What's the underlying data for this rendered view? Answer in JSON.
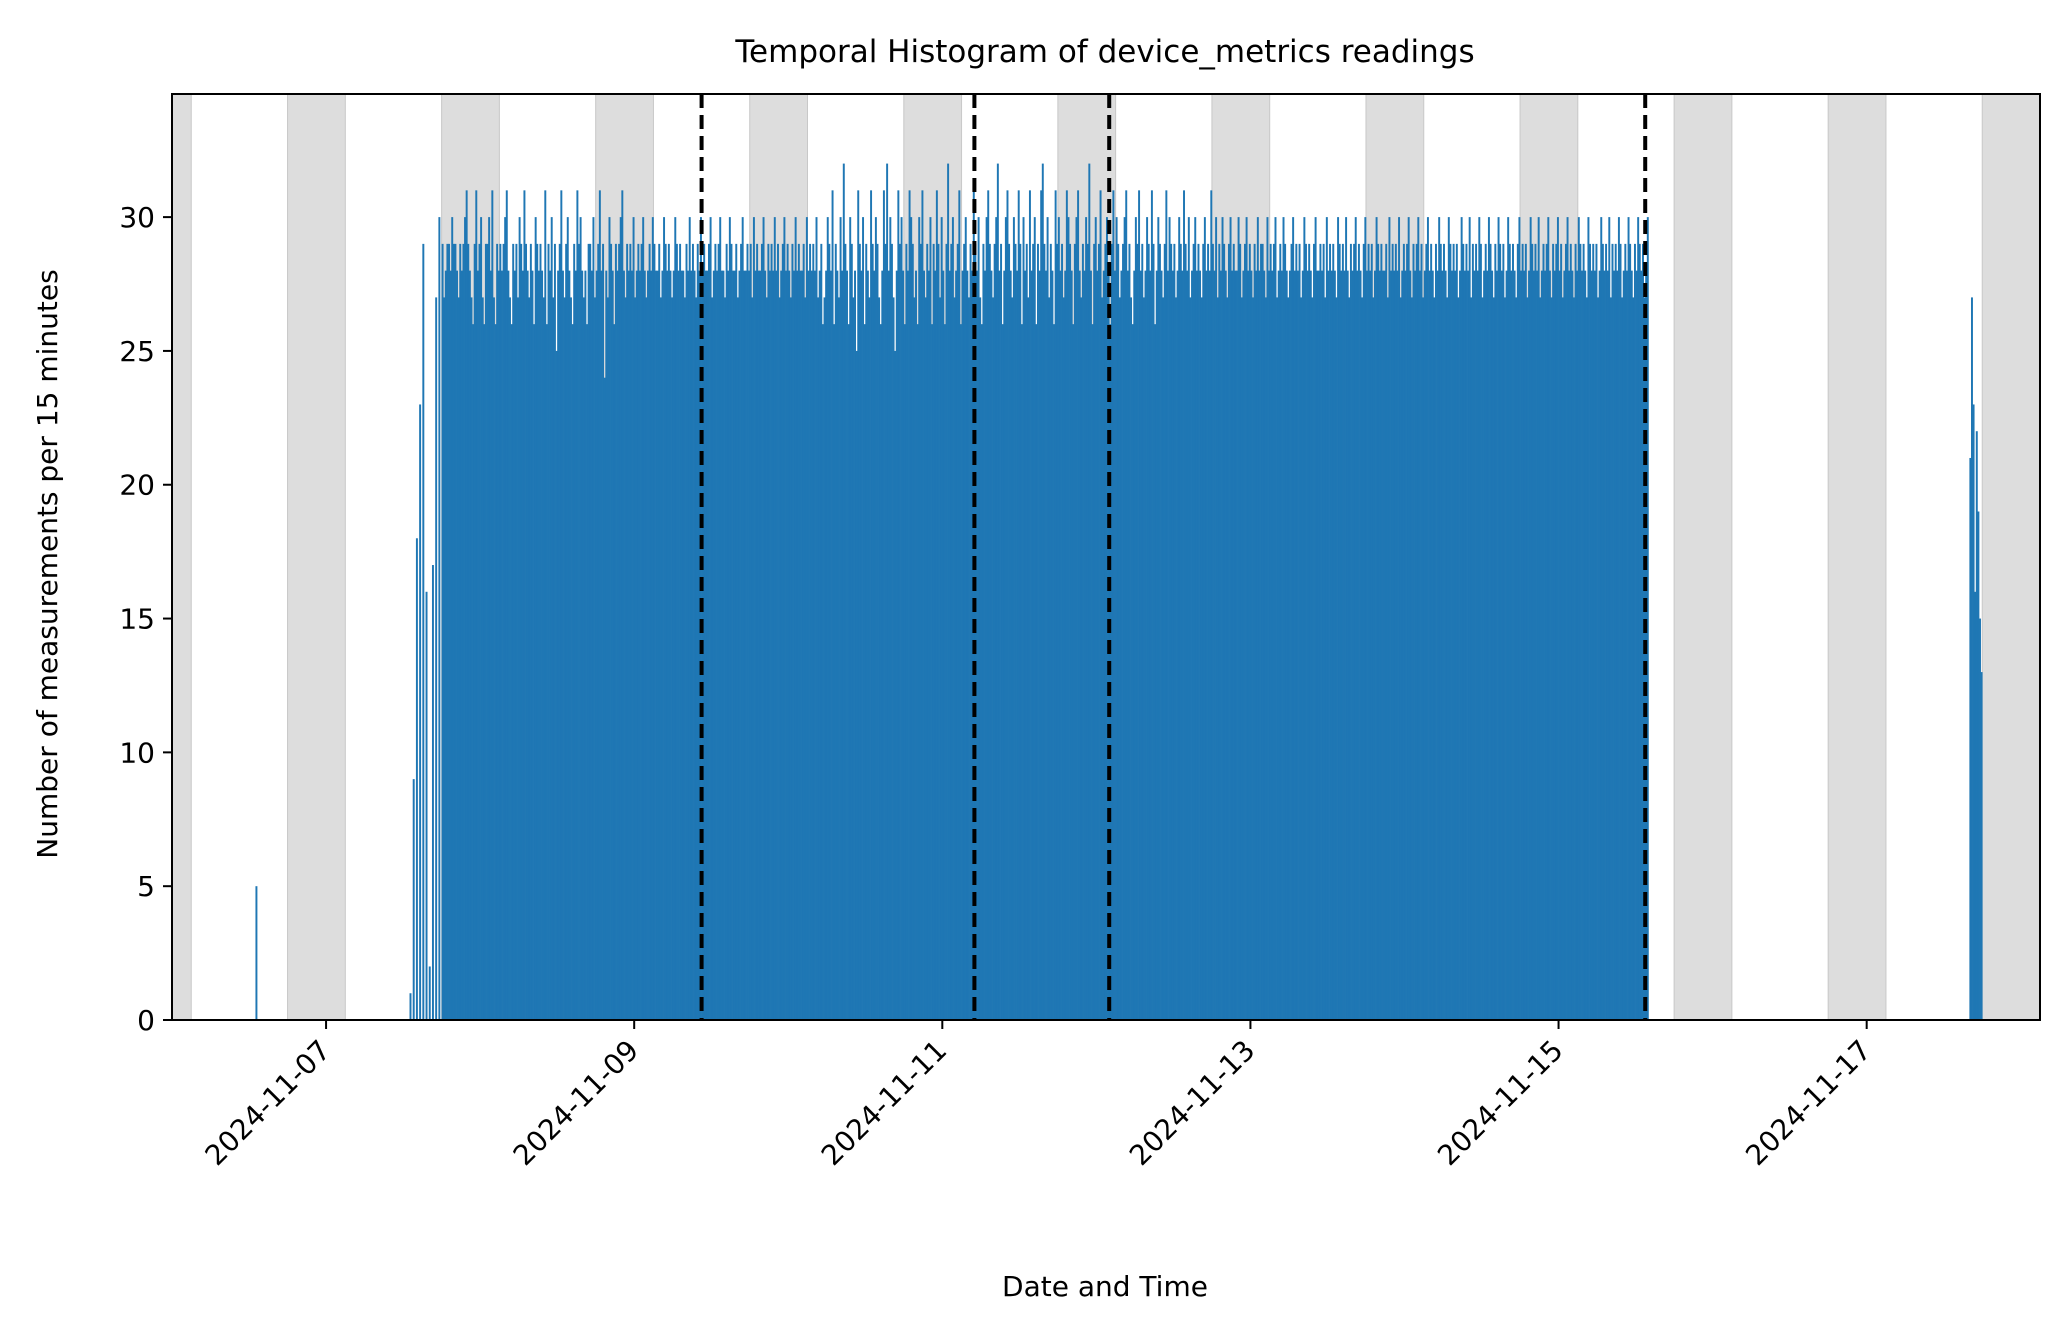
{
  "chart_data": {
    "type": "bar",
    "title": "Temporal Histogram of device_metrics readings",
    "xlabel": "Date and Time",
    "ylabel": "Number of measurements per 15 minutes",
    "xlim": [
      "2024-11-06 00:00",
      "2024-11-18 03:00"
    ],
    "ylim": [
      0,
      34.6
    ],
    "bin_minutes": 15,
    "bar_color": "#1f77b4",
    "x_ticks": [
      "2024-11-07",
      "2024-11-09",
      "2024-11-11",
      "2024-11-13",
      "2024-11-15",
      "2024-11-17"
    ],
    "y_ticks": [
      "0",
      "5",
      "10",
      "15",
      "20",
      "25",
      "30"
    ],
    "y_tick_values": [
      0,
      5,
      10,
      15,
      20,
      25,
      30
    ],
    "shaded_periods": {
      "color": "#dddddd",
      "ranges": [
        [
          "2024-11-06 00:00",
          "2024-11-06 03:00"
        ],
        [
          "2024-11-06 18:00",
          "2024-11-07 03:00"
        ],
        [
          "2024-11-07 18:00",
          "2024-11-08 03:00"
        ],
        [
          "2024-11-08 18:00",
          "2024-11-09 03:00"
        ],
        [
          "2024-11-09 18:00",
          "2024-11-10 03:00"
        ],
        [
          "2024-11-10 18:00",
          "2024-11-11 03:00"
        ],
        [
          "2024-11-11 18:00",
          "2024-11-12 03:00"
        ],
        [
          "2024-11-12 18:00",
          "2024-11-13 03:00"
        ],
        [
          "2024-11-13 18:00",
          "2024-11-14 03:00"
        ],
        [
          "2024-11-14 18:00",
          "2024-11-15 03:00"
        ],
        [
          "2024-11-15 18:00",
          "2024-11-16 03:00"
        ],
        [
          "2024-11-16 18:00",
          "2024-11-17 03:00"
        ],
        [
          "2024-11-17 18:00",
          "2024-11-18 03:00"
        ]
      ]
    },
    "vertical_markers": {
      "style": "dashed",
      "color": "#000000",
      "dates": [
        "2024-11-09 10:30",
        "2024-11-11 05:00",
        "2024-11-12 02:00",
        "2024-11-15 13:30"
      ]
    },
    "series": [
      {
        "points": [
          {
            "x": "2024-11-06 13:00",
            "y": 5
          },
          {
            "x": "2024-11-07 13:00",
            "y": 1
          },
          {
            "x": "2024-11-07 13:30",
            "y": 9
          },
          {
            "x": "2024-11-07 14:00",
            "y": 18
          },
          {
            "x": "2024-11-07 14:30",
            "y": 23
          },
          {
            "x": "2024-11-07 15:00",
            "y": 29
          },
          {
            "x": "2024-11-07 15:30",
            "y": 16
          },
          {
            "x": "2024-11-07 16:00",
            "y": 2
          },
          {
            "x": "2024-11-07 16:30",
            "y": 17
          },
          {
            "x": "2024-11-07 17:00",
            "y": 27
          },
          {
            "x": "2024-11-07 17:30",
            "y": 30
          },
          {
            "x": "2024-11-07 18:00",
            "y": 29
          },
          {
            "x": "2024-11-17 16:00",
            "y": 21
          },
          {
            "x": "2024-11-17 16:15",
            "y": 27
          },
          {
            "x": "2024-11-17 16:30",
            "y": 23
          },
          {
            "x": "2024-11-17 16:45",
            "y": 16
          },
          {
            "x": "2024-11-17 17:00",
            "y": 22
          },
          {
            "x": "2024-11-17 17:15",
            "y": 19
          },
          {
            "x": "2024-11-17 17:30",
            "y": 15
          },
          {
            "x": "2024-11-17 17:45",
            "y": 13
          }
        ],
        "range": {
          "start": "2024-11-07 18:15",
          "end": "2024-11-15 13:45",
          "values": [
            27,
            28,
            29,
            29,
            28,
            30,
            29,
            29,
            28,
            27,
            29,
            28,
            29,
            30,
            31,
            29,
            28,
            27,
            26,
            29,
            31,
            28,
            29,
            30,
            27,
            26,
            29,
            29,
            30,
            28,
            31,
            27,
            26,
            29,
            28,
            29,
            28,
            29,
            30,
            31,
            28,
            27,
            26,
            29,
            28,
            29,
            27,
            30,
            29,
            28,
            31,
            29,
            28,
            27,
            29,
            28,
            26,
            30,
            29,
            28,
            29,
            28,
            27,
            31,
            26,
            29,
            28,
            30,
            27,
            29,
            25,
            28,
            29,
            31,
            28,
            27,
            29,
            30,
            28,
            27,
            26,
            29,
            28,
            31,
            29,
            30,
            28,
            27,
            28,
            26,
            29,
            29,
            28,
            30,
            27,
            28,
            29,
            31,
            28,
            29,
            24,
            28,
            27,
            30,
            29,
            28,
            26,
            29,
            28,
            29,
            30,
            31,
            28,
            27,
            29,
            28,
            29,
            28,
            30,
            27,
            28,
            29,
            28,
            29,
            30,
            28,
            27,
            28,
            29,
            28,
            30,
            29,
            28,
            28,
            29,
            27,
            28,
            30,
            29,
            28,
            29,
            28,
            27,
            28,
            30,
            29,
            28,
            29,
            28,
            28,
            27,
            29,
            28,
            30,
            28,
            29,
            28,
            27,
            29,
            28,
            30,
            28,
            29,
            28,
            28,
            29,
            30,
            27,
            28,
            29,
            28,
            29,
            30,
            28,
            28,
            27,
            29,
            28,
            30,
            29,
            28,
            28,
            29,
            27,
            28,
            29,
            30,
            28,
            28,
            29,
            28,
            29,
            27,
            30,
            28,
            29,
            28,
            28,
            29,
            30,
            28,
            27,
            29,
            28,
            29,
            28,
            30,
            28,
            29,
            27,
            28,
            29,
            30,
            28,
            29,
            28,
            27,
            29,
            28,
            30,
            28,
            29,
            28,
            28,
            29,
            27,
            30,
            28,
            29,
            28,
            29,
            28,
            30,
            27,
            28,
            29,
            26,
            27,
            28,
            30,
            29,
            28,
            31,
            26,
            29,
            28,
            27,
            30,
            28,
            32,
            29,
            28,
            26,
            30,
            29,
            27,
            28,
            25,
            31,
            29,
            28,
            30,
            26,
            29,
            28,
            27,
            31,
            29,
            28,
            30,
            29,
            27,
            26,
            28,
            31,
            29,
            32,
            28,
            30,
            29,
            27,
            25,
            28,
            31,
            29,
            30,
            28,
            26,
            29,
            28,
            31,
            30,
            29,
            27,
            28,
            26,
            30,
            29,
            31,
            28,
            27,
            29,
            28,
            30,
            26,
            29,
            28,
            31,
            29,
            27,
            30,
            28,
            26,
            29,
            32,
            28,
            29,
            30,
            27,
            28,
            29,
            31,
            26,
            28,
            29,
            30,
            28,
            27,
            29,
            28,
            31,
            29,
            28,
            30,
            27,
            26,
            29,
            28,
            30,
            31,
            29,
            28,
            27,
            29,
            30,
            32,
            28,
            29,
            26,
            28,
            30,
            31,
            29,
            28,
            27,
            30,
            29,
            28,
            31,
            29,
            26,
            30,
            28,
            29,
            27,
            31,
            28,
            29,
            30,
            26,
            29,
            28,
            31,
            32,
            29,
            28,
            30,
            27,
            29,
            28,
            26,
            31,
            29,
            30,
            28,
            29,
            27,
            28,
            31,
            30,
            29,
            28,
            26,
            29,
            30,
            31,
            28,
            27,
            29,
            28,
            30,
            29,
            32,
            28,
            26,
            29,
            30,
            28,
            29,
            31,
            27,
            28,
            29,
            30,
            28,
            26,
            29,
            31,
            28,
            30,
            29,
            27,
            28,
            29,
            30,
            31,
            28,
            29,
            27,
            26,
            28,
            30,
            29,
            31,
            28,
            29,
            27,
            28,
            30,
            29,
            28,
            31,
            29,
            26,
            28,
            30,
            29,
            28,
            27,
            29,
            31,
            28,
            30,
            29,
            28,
            29,
            27,
            28,
            30,
            29,
            28,
            31,
            29,
            28,
            30,
            27,
            28,
            29,
            30,
            28,
            29,
            28,
            27,
            29,
            30,
            28,
            29,
            28,
            31,
            29,
            28,
            30,
            27,
            29,
            28,
            30,
            29,
            28,
            27,
            29,
            30,
            28,
            29,
            28,
            28,
            30,
            29,
            27,
            28,
            29,
            30,
            28,
            29,
            28,
            27,
            29,
            28,
            30,
            28,
            29,
            29,
            28,
            27,
            30,
            28,
            29,
            28,
            29,
            30,
            27,
            28,
            29,
            28,
            30,
            29,
            28,
            27,
            28,
            29,
            30,
            28,
            29,
            28,
            29,
            27,
            28,
            30,
            29,
            28,
            29,
            28,
            27,
            29,
            30,
            28,
            28,
            29,
            28,
            29,
            27,
            30,
            28,
            29,
            28,
            29,
            28,
            27,
            30,
            29,
            28,
            29,
            28,
            30,
            28,
            27,
            29,
            28,
            29,
            30,
            28,
            29,
            28,
            27,
            29,
            30,
            28,
            29,
            28,
            29,
            27,
            28,
            30,
            29,
            28,
            29,
            28,
            28,
            29,
            27,
            30,
            28,
            29,
            28,
            29,
            28,
            30,
            27,
            28,
            29,
            28,
            29,
            30,
            28,
            27,
            29,
            28,
            29,
            30,
            28,
            29,
            27,
            28,
            29,
            30,
            28,
            29,
            28,
            27,
            29,
            28,
            30,
            29,
            28,
            29,
            28,
            27,
            30,
            29,
            28,
            29,
            28,
            29,
            27,
            28,
            30,
            29,
            28,
            29,
            28,
            30,
            27,
            29,
            28,
            29,
            28,
            30,
            29,
            27,
            28,
            29,
            28,
            30,
            29,
            28,
            27,
            29,
            28,
            30,
            29,
            28,
            29,
            27,
            28,
            30,
            29,
            28,
            29,
            28,
            27,
            29,
            30,
            28,
            29,
            28,
            29,
            27,
            28,
            30,
            29,
            28,
            29,
            28,
            30,
            27,
            28,
            29,
            28,
            29,
            30,
            28,
            27,
            29,
            28,
            29,
            30,
            28,
            29,
            27,
            28,
            29,
            30,
            28,
            29,
            28,
            27,
            29,
            28,
            30,
            29,
            28,
            29,
            28,
            27,
            30,
            29,
            28,
            29,
            28,
            29,
            27,
            28,
            30,
            29,
            28,
            29,
            28,
            30,
            27,
            29,
            28,
            29,
            28,
            30,
            29,
            27,
            28,
            29,
            28,
            30,
            29,
            28,
            27,
            29,
            28,
            30,
            29,
            28,
            29,
            27,
            28,
            30,
            29,
            28,
            29,
            28,
            27,
            29,
            30,
            28,
            29,
            28,
            29
          ]
        }
      }
    ]
  }
}
